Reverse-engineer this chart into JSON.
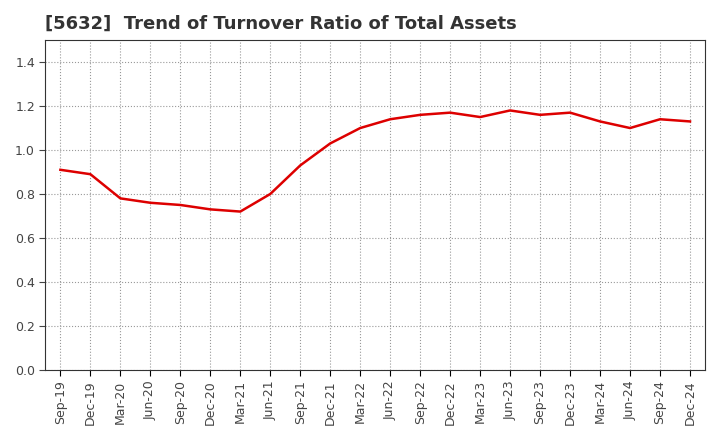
{
  "title": "[5632]  Trend of Turnover Ratio of Total Assets",
  "labels": [
    "Sep-19",
    "Dec-19",
    "Mar-20",
    "Jun-20",
    "Sep-20",
    "Dec-20",
    "Mar-21",
    "Jun-21",
    "Sep-21",
    "Dec-21",
    "Mar-22",
    "Jun-22",
    "Sep-22",
    "Dec-22",
    "Mar-23",
    "Jun-23",
    "Sep-23",
    "Dec-23",
    "Mar-24",
    "Jun-24",
    "Sep-24",
    "Dec-24"
  ],
  "values": [
    0.91,
    0.89,
    0.78,
    0.76,
    0.75,
    0.73,
    0.72,
    0.8,
    0.93,
    1.03,
    1.1,
    1.14,
    1.16,
    1.17,
    1.15,
    1.18,
    1.16,
    1.17,
    1.13,
    1.1,
    1.14,
    1.13
  ],
  "line_color": "#dd0000",
  "line_width": 1.8,
  "ylim": [
    0.0,
    1.5
  ],
  "yticks": [
    0.0,
    0.2,
    0.4,
    0.6,
    0.8,
    1.0,
    1.2,
    1.4
  ],
  "grid_color": "#999999",
  "background_color": "#ffffff",
  "title_fontsize": 13,
  "tick_fontsize": 9,
  "title_color": "#333333"
}
